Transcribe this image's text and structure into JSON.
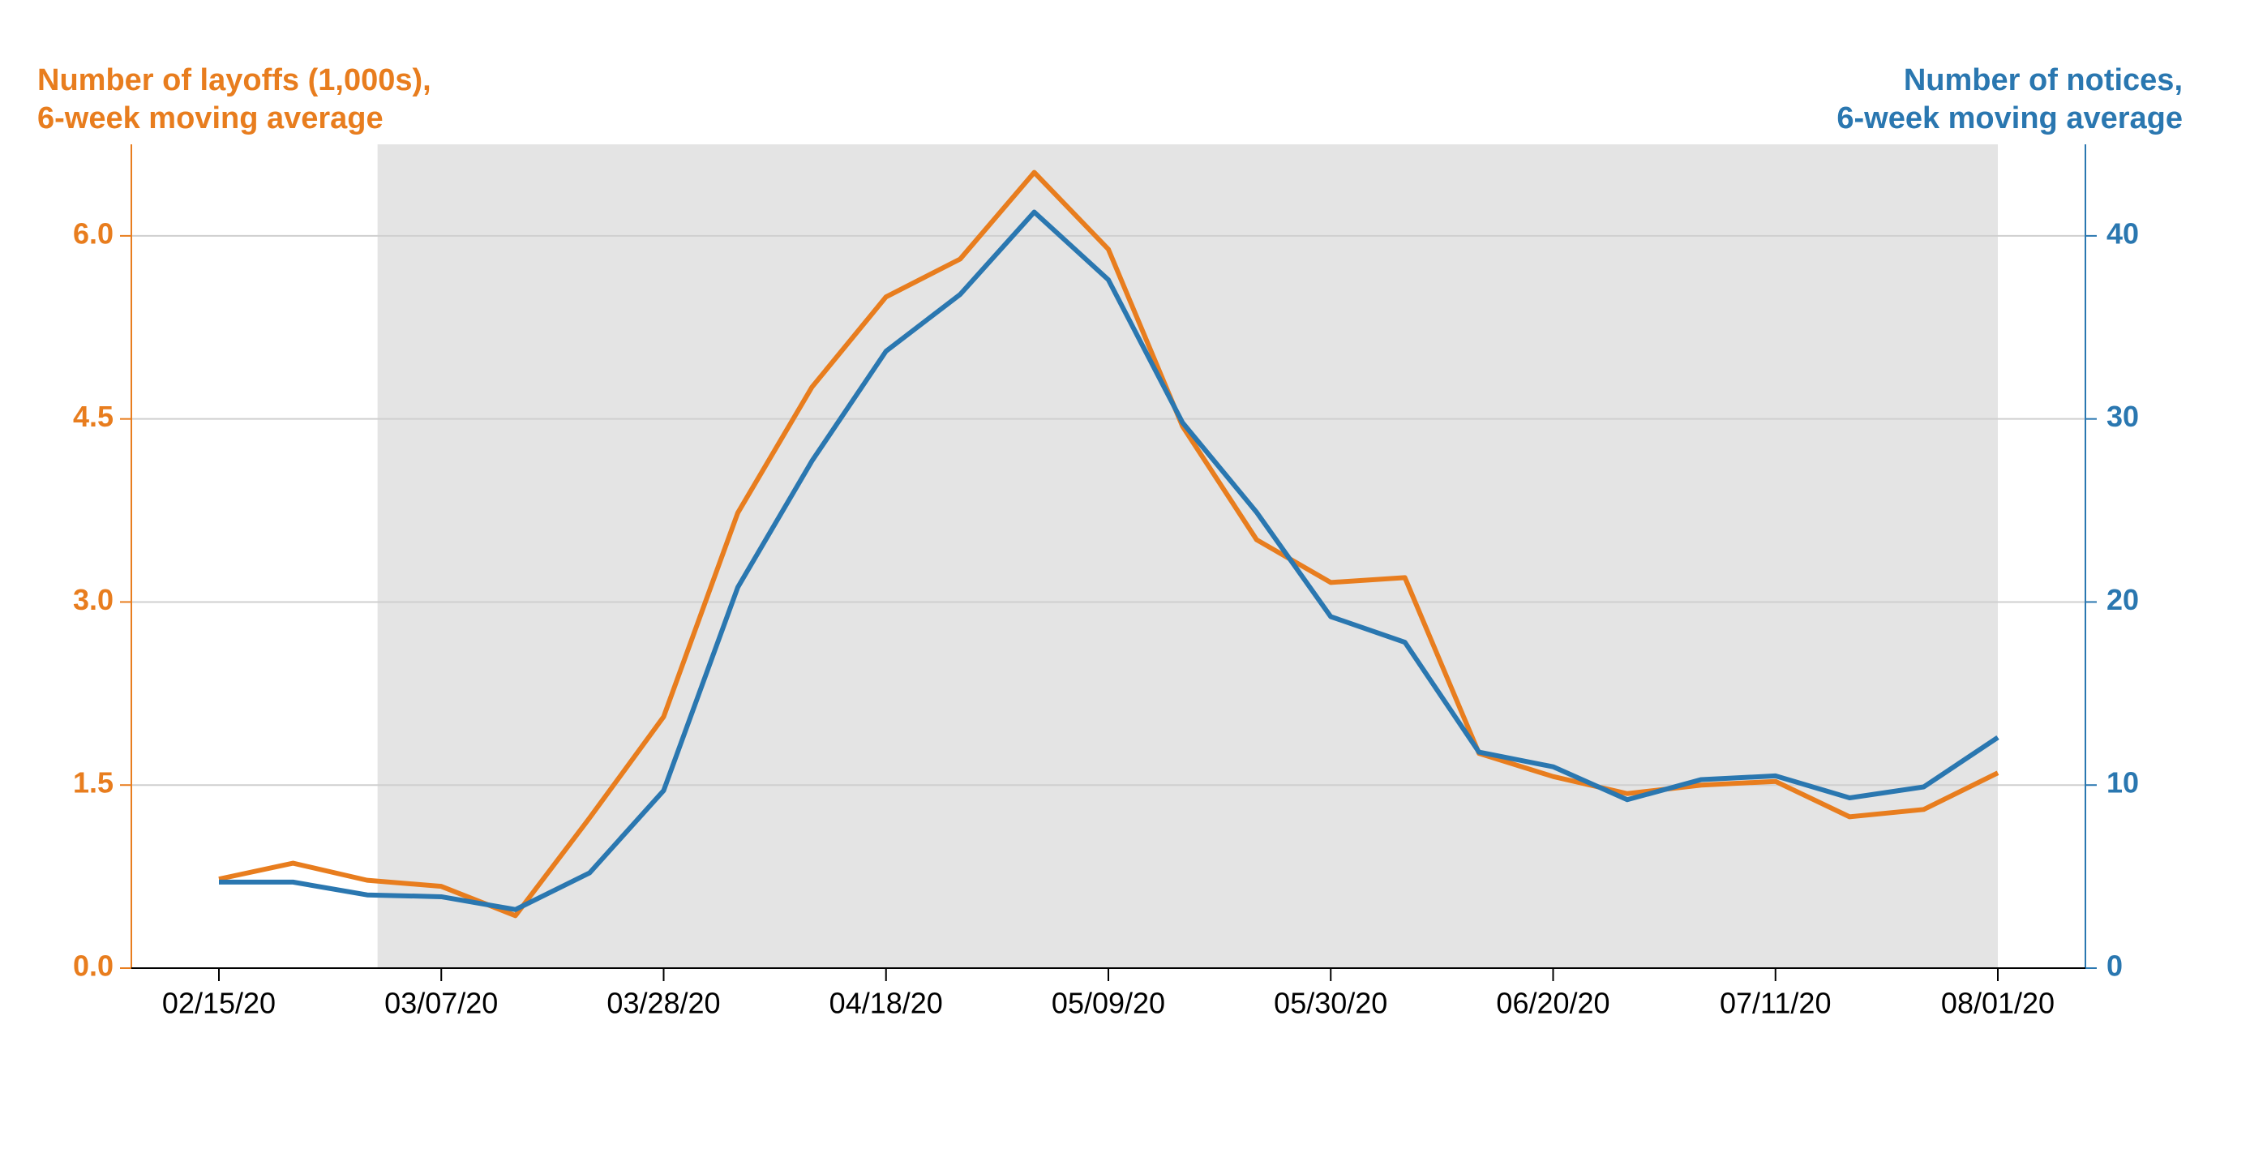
{
  "chart_data": {
    "type": "line",
    "y_label": [
      "Number of layoffs (1,000s),",
      "6-week moving average"
    ],
    "y2_label": [
      "Number of notices,",
      "6-week moving average"
    ],
    "categories": [
      "02/15/20",
      null,
      null,
      "03/07/20",
      null,
      null,
      "03/28/20",
      null,
      null,
      "04/18/20",
      null,
      null,
      "05/09/20",
      null,
      null,
      "05/30/20",
      null,
      null,
      "06/20/20",
      null,
      null,
      "07/11/20",
      null,
      null,
      "08/01/20"
    ],
    "series": [
      {
        "name": "Number of layoffs (1,000s), 6-week moving average",
        "color": "#e87d1e",
        "values": [
          0.73,
          0.86,
          0.72,
          0.67,
          0.43,
          1.23,
          2.06,
          3.73,
          4.76,
          5.5,
          5.81,
          6.52,
          5.89,
          4.44,
          3.51,
          3.16,
          3.2,
          1.76,
          1.57,
          1.43,
          1.5,
          1.53,
          1.24,
          1.3,
          1.6
        ]
      },
      {
        "name": "Number of notices, 6-week moving average",
        "color": "#2a77b0",
        "axis": "y2",
        "values": [
          4.7,
          4.7,
          4.0,
          3.9,
          3.2,
          5.2,
          9.7,
          20.8,
          27.7,
          33.7,
          36.8,
          41.3,
          37.6,
          29.8,
          24.9,
          19.2,
          17.8,
          11.8,
          11.0,
          9.2,
          10.3,
          10.5,
          9.3,
          9.9,
          12.6
        ]
      }
    ],
    "ylim": [
      0,
      6.75
    ],
    "yticks": [
      {
        "value": 0,
        "label": "0.0"
      },
      1.5,
      {
        "value": 3,
        "label": "3.0"
      },
      4.5,
      {
        "value": 6,
        "label": "6.0"
      }
    ],
    "y2lim": [
      0,
      45
    ],
    "y2ticks": [
      0,
      10,
      20,
      30,
      40
    ],
    "grid": true,
    "shading": {
      "color": "#e4e4e4",
      "start_index": 2.14,
      "end_index": 24
    }
  }
}
